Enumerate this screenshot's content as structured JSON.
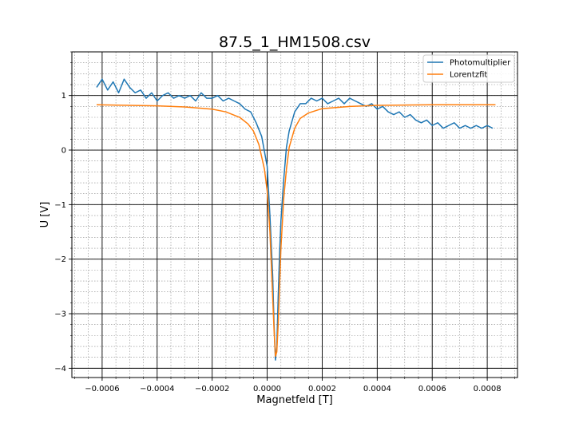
{
  "chart_data": {
    "type": "line",
    "title": "87.5_1_HM1508.csv",
    "xlabel": "Magnetfeld [T]",
    "ylabel": "U [V]",
    "xlim": [
      -0.00071,
      0.00091
    ],
    "ylim": [
      -4.17,
      1.8
    ],
    "grid": "major and minor",
    "legend_position": "top-right",
    "x_ticks": [
      {
        "value": -0.0006,
        "label": "−0.0006"
      },
      {
        "value": -0.0004,
        "label": "−0.0004"
      },
      {
        "value": -0.0002,
        "label": "−0.0002"
      },
      {
        "value": 0.0,
        "label": "0.0000"
      },
      {
        "value": 0.0002,
        "label": "0.0002"
      },
      {
        "value": 0.0004,
        "label": "0.0004"
      },
      {
        "value": 0.0006,
        "label": "0.0006"
      },
      {
        "value": 0.0008,
        "label": "0.0008"
      }
    ],
    "y_ticks": [
      {
        "value": 1,
        "label": "1"
      },
      {
        "value": 0,
        "label": "0"
      },
      {
        "value": -1,
        "label": "−1"
      },
      {
        "value": -2,
        "label": "−2"
      },
      {
        "value": -3,
        "label": "−3"
      },
      {
        "value": -4,
        "label": "−4"
      }
    ],
    "series": [
      {
        "name": "Photomultiplier",
        "color": "#1f77b4",
        "x": [
          -0.00062,
          -0.0006,
          -0.00058,
          -0.00056,
          -0.00054,
          -0.00052,
          -0.0005,
          -0.00048,
          -0.00046,
          -0.00044,
          -0.00042,
          -0.0004,
          -0.00038,
          -0.00036,
          -0.00034,
          -0.00032,
          -0.0003,
          -0.00028,
          -0.00026,
          -0.00024,
          -0.00022,
          -0.0002,
          -0.00018,
          -0.00016,
          -0.00014,
          -0.00012,
          -0.0001,
          -8e-05,
          -6e-05,
          -4e-05,
          -2e-05,
          0.0,
          1e-05,
          2e-05,
          2.5e-05,
          3e-05,
          3.5e-05,
          4e-05,
          4.5e-05,
          5e-05,
          6e-05,
          7e-05,
          8e-05,
          0.0001,
          0.00012,
          0.00014,
          0.00016,
          0.00018,
          0.0002,
          0.00022,
          0.00024,
          0.00026,
          0.00028,
          0.0003,
          0.00032,
          0.00034,
          0.00036,
          0.00038,
          0.0004,
          0.00042,
          0.00044,
          0.00046,
          0.00048,
          0.0005,
          0.00052,
          0.00054,
          0.00056,
          0.00058,
          0.0006,
          0.00062,
          0.00064,
          0.00066,
          0.00068,
          0.0007,
          0.00072,
          0.00074,
          0.00076,
          0.00078,
          0.0008,
          0.00082
        ],
        "y": [
          1.15,
          1.3,
          1.1,
          1.25,
          1.05,
          1.3,
          1.15,
          1.05,
          1.1,
          0.95,
          1.05,
          0.9,
          1.0,
          1.05,
          0.95,
          1.0,
          0.95,
          1.0,
          0.9,
          1.05,
          0.95,
          0.95,
          1.0,
          0.9,
          0.95,
          0.9,
          0.85,
          0.75,
          0.7,
          0.5,
          0.25,
          -0.3,
          -1.2,
          -2.3,
          -3.2,
          -3.85,
          -3.6,
          -2.7,
          -1.9,
          -1.3,
          -0.55,
          0.05,
          0.35,
          0.7,
          0.85,
          0.85,
          0.95,
          0.9,
          0.95,
          0.85,
          0.9,
          0.95,
          0.85,
          0.95,
          0.9,
          0.85,
          0.8,
          0.85,
          0.75,
          0.8,
          0.7,
          0.65,
          0.7,
          0.6,
          0.65,
          0.55,
          0.5,
          0.55,
          0.45,
          0.5,
          0.4,
          0.45,
          0.5,
          0.4,
          0.45,
          0.4,
          0.45,
          0.4,
          0.45,
          0.4
        ]
      },
      {
        "name": "Lorentzfit",
        "color": "#ff7f0e",
        "x": [
          -0.00062,
          -0.0004,
          -0.0003,
          -0.0002,
          -0.00015,
          -0.0001,
          -7e-05,
          -5e-05,
          -3e-05,
          -1e-05,
          0.0,
          1e-05,
          2e-05,
          2.5e-05,
          3e-05,
          3.5e-05,
          4e-05,
          4.5e-05,
          5e-05,
          6e-05,
          7e-05,
          8e-05,
          0.0001,
          0.00012,
          0.00015,
          0.0002,
          0.0003,
          0.0004,
          0.0006,
          0.00083
        ],
        "y": [
          0.83,
          0.81,
          0.79,
          0.75,
          0.7,
          0.6,
          0.48,
          0.35,
          0.1,
          -0.35,
          -0.75,
          -1.5,
          -2.7,
          -3.3,
          -3.78,
          -3.7,
          -3.2,
          -2.5,
          -1.8,
          -0.9,
          -0.35,
          0.05,
          0.4,
          0.58,
          0.68,
          0.76,
          0.8,
          0.82,
          0.83,
          0.83
        ]
      }
    ]
  }
}
